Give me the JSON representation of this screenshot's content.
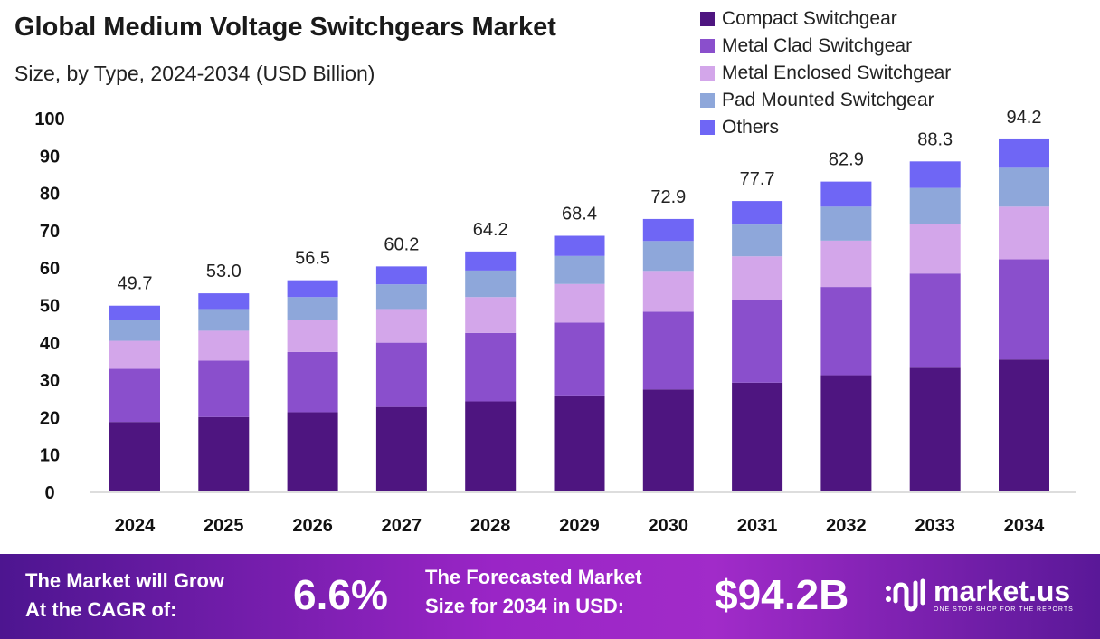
{
  "chart_data": {
    "type": "bar",
    "stacked": true,
    "title": "Global Medium Voltage Switchgears Market",
    "subtitle": "Size, by Type, 2024-2034 (USD Billion)",
    "categories": [
      "2024",
      "2025",
      "2026",
      "2027",
      "2028",
      "2029",
      "2030",
      "2031",
      "2032",
      "2033",
      "2034"
    ],
    "totals": [
      "49.7",
      "53.0",
      "56.5",
      "60.2",
      "64.2",
      "68.4",
      "72.9",
      "77.7",
      "82.9",
      "88.3",
      "94.2"
    ],
    "series": [
      {
        "name": "Compact Switchgear",
        "color": "#4e1580",
        "values": [
          18.6,
          19.9,
          21.2,
          22.6,
          24.1,
          25.7,
          27.3,
          29.1,
          31.1,
          33.1,
          35.3
        ]
      },
      {
        "name": "Metal Clad Switchgear",
        "color": "#8a4fcc",
        "values": [
          14.2,
          15.1,
          16.1,
          17.2,
          18.3,
          19.5,
          20.8,
          22.1,
          23.6,
          25.2,
          26.8
        ]
      },
      {
        "name": "Metal Enclosed Switchgear",
        "color": "#d3a6ea",
        "values": [
          7.5,
          8.0,
          8.5,
          9.0,
          9.6,
          10.3,
          10.9,
          11.7,
          12.4,
          13.2,
          14.1
        ]
      },
      {
        "name": "Pad Mounted Switchgear",
        "color": "#8ea7da",
        "values": [
          5.5,
          5.8,
          6.2,
          6.6,
          7.1,
          7.5,
          8.0,
          8.5,
          9.1,
          9.7,
          10.4
        ]
      },
      {
        "name": "Others",
        "color": "#6f66f5",
        "values": [
          3.9,
          4.2,
          4.5,
          4.8,
          5.1,
          5.4,
          5.9,
          6.3,
          6.7,
          7.1,
          7.6
        ]
      }
    ],
    "yticks": [
      "0",
      "10",
      "20",
      "30",
      "40",
      "50",
      "60",
      "70",
      "80",
      "90",
      "100"
    ],
    "ylim": [
      0,
      100
    ],
    "grid": false,
    "legend": "top-right"
  },
  "banner": {
    "cagr_label_1": "The Market will Grow",
    "cagr_label_2": "At the CAGR of:",
    "cagr_value": "6.6%",
    "forecast_label_1": "The Forecasted Market",
    "forecast_label_2": "Size for 2034 in USD:",
    "forecast_value": "$94.2B",
    "logo_name": "market.us",
    "logo_tagline": "ONE STOP SHOP FOR THE REPORTS"
  }
}
